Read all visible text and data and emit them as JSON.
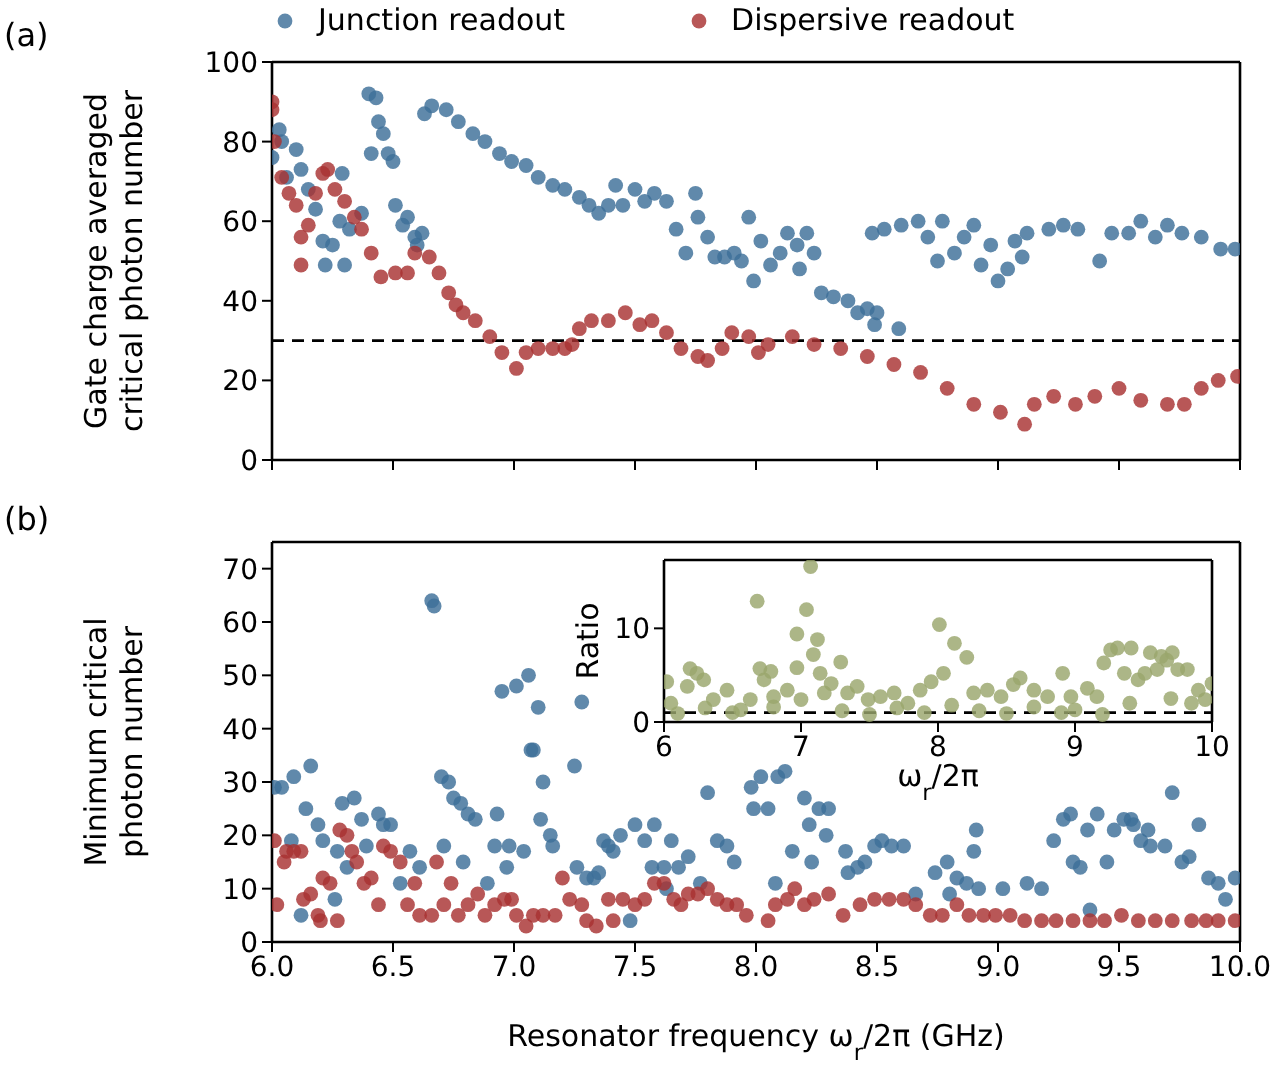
{
  "chart_data": [
    {
      "type": "scatter",
      "ylabel": "Gate charge averaged critical photon number",
      "annotations": [
        "(a)"
      ],
      "legend": "top",
      "marker": "circle",
      "tick_labels": "y",
      "xlim": [
        6,
        10
      ],
      "xticks": [
        {
          "value": 6,
          "label": null
        },
        {
          "value": 6.5,
          "label": null
        },
        {
          "value": 7,
          "label": null
        },
        {
          "value": 7.5,
          "label": null
        },
        {
          "value": 8,
          "label": null
        },
        {
          "value": 8.5,
          "label": null
        },
        {
          "value": 9,
          "label": null
        },
        {
          "value": 9.5,
          "label": null
        },
        {
          "value": 10,
          "label": null
        }
      ],
      "ylim": [
        0,
        100
      ],
      "yticks": [
        0,
        20,
        40,
        60,
        80,
        100
      ],
      "ref_lines": [
        {
          "axis": "y",
          "value": 30,
          "line_style": "dashed",
          "color": "#000000"
        }
      ],
      "series": [
        {
          "name": "Junction readout",
          "color": "#3d6f98",
          "x": [
            6.0,
            6.03,
            6.04,
            6.06,
            6.1,
            6.12,
            6.15,
            6.18,
            6.21,
            6.22,
            6.25,
            6.28,
            6.29,
            6.3,
            6.32,
            6.37,
            6.4,
            6.41,
            6.43,
            6.44,
            6.46,
            6.48,
            6.5,
            6.51,
            6.54,
            6.56,
            6.59,
            6.6,
            6.62,
            6.63,
            6.66,
            6.72,
            6.77,
            6.83,
            6.88,
            6.94,
            6.99,
            7.05,
            7.1,
            7.16,
            7.21,
            7.27,
            7.31,
            7.35,
            7.39,
            7.42,
            7.45,
            7.5,
            7.54,
            7.58,
            7.63,
            7.67,
            7.71,
            7.75,
            7.76,
            7.8,
            7.83,
            7.87,
            7.91,
            7.94,
            7.97,
            7.99,
            8.02,
            8.06,
            8.1,
            8.13,
            8.17,
            8.18,
            8.21,
            8.24,
            8.27,
            8.32,
            8.38,
            8.42,
            8.46,
            8.48,
            8.49,
            8.5,
            8.53,
            8.59,
            8.6,
            8.67,
            8.71,
            8.75,
            8.77,
            8.82,
            8.86,
            8.9,
            8.93,
            8.97,
            9.0,
            9.04,
            9.07,
            9.1,
            9.12,
            9.21,
            9.27,
            9.33,
            9.42,
            9.47,
            9.54,
            9.59,
            9.65,
            9.7,
            9.76,
            9.84,
            9.92,
            9.98
          ],
          "values": [
            76,
            83,
            80,
            71,
            78,
            73,
            68,
            63,
            55,
            49,
            54,
            60,
            72,
            49,
            58,
            62,
            92,
            77,
            91,
            85,
            82,
            77,
            75,
            64,
            59,
            61,
            56,
            54,
            57,
            87,
            89,
            88,
            85,
            82,
            80,
            77,
            75,
            74,
            71,
            69,
            68,
            66,
            64,
            62,
            64,
            69,
            64,
            68,
            65,
            67,
            65,
            58,
            52,
            67,
            61,
            56,
            51,
            51,
            52,
            50,
            61,
            45,
            55,
            49,
            52,
            57,
            54,
            48,
            57,
            52,
            42,
            41,
            40,
            37,
            38,
            57,
            34,
            37,
            58,
            33,
            59,
            60,
            56,
            50,
            60,
            52,
            56,
            59,
            49,
            54,
            45,
            48,
            55,
            51,
            57,
            58,
            59,
            58,
            50,
            57,
            57,
            60,
            56,
            59,
            57,
            56,
            53,
            53
          ]
        },
        {
          "name": "Dispersive readout",
          "color": "#a83232",
          "x": [
            6.0,
            6.0,
            6.01,
            6.04,
            6.07,
            6.1,
            6.12,
            6.12,
            6.15,
            6.18,
            6.21,
            6.23,
            6.26,
            6.3,
            6.34,
            6.37,
            6.41,
            6.45,
            6.51,
            6.56,
            6.59,
            6.65,
            6.69,
            6.73,
            6.76,
            6.79,
            6.84,
            6.9,
            6.95,
            7.01,
            7.05,
            7.1,
            7.16,
            7.21,
            7.24,
            7.27,
            7.32,
            7.39,
            7.46,
            7.52,
            7.57,
            7.63,
            7.69,
            7.76,
            7.8,
            7.86,
            7.9,
            7.97,
            8.01,
            8.05,
            8.15,
            8.24,
            8.35,
            8.46,
            8.57,
            8.68,
            8.79,
            8.9,
            9.01,
            9.11,
            9.15,
            9.23,
            9.32,
            9.4,
            9.5,
            9.59,
            9.7,
            9.77,
            9.84,
            9.91,
            9.99
          ],
          "values": [
            90,
            88,
            80,
            71,
            67,
            64,
            56,
            49,
            59,
            67,
            72,
            73,
            68,
            65,
            61,
            58,
            52,
            46,
            47,
            47,
            52,
            51,
            47,
            42,
            39,
            37,
            35,
            31,
            27,
            23,
            27,
            28,
            28,
            28,
            29,
            33,
            35,
            35,
            37,
            34,
            35,
            32,
            28,
            26,
            25,
            28,
            32,
            31,
            27,
            29,
            31,
            29,
            28,
            26,
            24,
            22,
            18,
            14,
            12,
            9,
            14,
            16,
            14,
            16,
            18,
            15,
            14,
            14,
            18,
            20,
            21
          ]
        }
      ]
    },
    {
      "type": "scatter",
      "xlabel": "Resonator frequency ω$_{r}$/2π (GHz)",
      "ylabel": "Minimum critical photon number",
      "annotations": [
        "(b)"
      ],
      "marker": "circle",
      "xlim": [
        6,
        10
      ],
      "xticks": [
        {
          "value": 6,
          "label": "6.0"
        },
        {
          "value": 6.5,
          "label": "6.5"
        },
        {
          "value": 7,
          "label": "7.0"
        },
        {
          "value": 7.5,
          "label": "7.5"
        },
        {
          "value": 8,
          "label": "8.0"
        },
        {
          "value": 8.5,
          "label": "8.5"
        },
        {
          "value": 9,
          "label": "9.0"
        },
        {
          "value": 9.5,
          "label": "9.5"
        },
        {
          "value": 10,
          "label": "10.0"
        }
      ],
      "ylim": [
        0,
        75
      ],
      "yticks": [
        0,
        10,
        20,
        30,
        40,
        50,
        60,
        70
      ],
      "series": [
        {
          "color": "#3d6f98",
          "x": [
            6.01,
            6.04,
            6.08,
            6.09,
            6.12,
            6.14,
            6.16,
            6.19,
            6.21,
            6.26,
            6.27,
            6.29,
            6.31,
            6.34,
            6.37,
            6.39,
            6.44,
            6.46,
            6.49,
            6.53,
            6.57,
            6.61,
            6.66,
            6.67,
            6.7,
            6.71,
            6.73,
            6.75,
            6.78,
            6.79,
            6.81,
            6.84,
            6.89,
            6.92,
            6.93,
            6.95,
            6.97,
            6.98,
            7.01,
            7.04,
            7.06,
            7.07,
            7.08,
            7.1,
            7.11,
            7.12,
            7.15,
            7.16,
            7.25,
            7.26,
            7.28,
            7.3,
            7.33,
            7.35,
            7.37,
            7.39,
            7.41,
            7.44,
            7.48,
            7.5,
            7.54,
            7.57,
            7.58,
            7.62,
            7.63,
            7.65,
            7.68,
            7.72,
            7.77,
            7.8,
            7.84,
            7.88,
            7.91,
            7.98,
            7.99,
            8.02,
            8.05,
            8.08,
            8.09,
            8.12,
            8.15,
            8.2,
            8.22,
            8.23,
            8.26,
            8.29,
            8.3,
            8.37,
            8.38,
            8.42,
            8.45,
            8.49,
            8.52,
            8.56,
            8.61,
            8.66,
            8.74,
            8.79,
            8.8,
            8.83,
            8.87,
            8.9,
            8.91,
            8.92,
            9.02,
            9.12,
            9.18,
            9.23,
            9.27,
            9.3,
            9.31,
            9.34,
            9.37,
            9.38,
            9.41,
            9.45,
            9.48,
            9.52,
            9.55,
            9.56,
            9.59,
            9.62,
            9.63,
            9.69,
            9.72,
            9.76,
            9.79,
            9.83,
            9.87,
            9.91,
            9.94,
            9.98
          ],
          "values": [
            29,
            29,
            19,
            31,
            5,
            25,
            33,
            22,
            19,
            8,
            17,
            26,
            14,
            27,
            23,
            18,
            24,
            22,
            22,
            11,
            17,
            14,
            64,
            63,
            31,
            18,
            30,
            27,
            26,
            15,
            24,
            23,
            11,
            18,
            24,
            47,
            14,
            18,
            48,
            17,
            50,
            36,
            36,
            44,
            23,
            30,
            20,
            18,
            33,
            14,
            45,
            12,
            12,
            13,
            19,
            18,
            17,
            20,
            4,
            22,
            19,
            14,
            22,
            14,
            10,
            19,
            14,
            16,
            11,
            28,
            19,
            18,
            15,
            29,
            25,
            31,
            25,
            11,
            31,
            32,
            17,
            27,
            22,
            15,
            25,
            20,
            25,
            17,
            13,
            14,
            15,
            18,
            19,
            18,
            18,
            9,
            13,
            15,
            9,
            12,
            11,
            17,
            21,
            10,
            10,
            11,
            10,
            19,
            23,
            24,
            15,
            14,
            21,
            6,
            24,
            15,
            21,
            23,
            23,
            22,
            19,
            21,
            18,
            18,
            28,
            15,
            16,
            22,
            12,
            11,
            8,
            12
          ]
        },
        {
          "color": "#a83232",
          "x": [
            6.01,
            6.02,
            6.05,
            6.06,
            6.09,
            6.12,
            6.13,
            6.16,
            6.19,
            6.2,
            6.21,
            6.24,
            6.27,
            6.28,
            6.31,
            6.33,
            6.35,
            6.38,
            6.41,
            6.44,
            6.46,
            6.49,
            6.53,
            6.56,
            6.59,
            6.61,
            6.66,
            6.68,
            6.71,
            6.74,
            6.77,
            6.81,
            6.85,
            6.88,
            6.92,
            6.96,
            6.99,
            7.01,
            7.05,
            7.08,
            7.12,
            7.17,
            7.2,
            7.23,
            7.28,
            7.3,
            7.34,
            7.39,
            7.41,
            7.45,
            7.5,
            7.54,
            7.58,
            7.62,
            7.66,
            7.69,
            7.72,
            7.76,
            7.8,
            7.84,
            7.88,
            7.92,
            7.96,
            8.05,
            8.08,
            8.13,
            8.16,
            8.2,
            8.24,
            8.3,
            8.36,
            8.43,
            8.49,
            8.55,
            8.61,
            8.66,
            8.72,
            8.77,
            8.83,
            8.88,
            8.94,
            8.99,
            9.05,
            9.11,
            9.18,
            9.24,
            9.31,
            9.38,
            9.44,
            9.51,
            9.58,
            9.65,
            9.72,
            9.8,
            9.86,
            9.91,
            9.98
          ],
          "values": [
            19,
            7,
            15,
            17,
            17,
            17,
            8,
            9,
            5,
            4,
            12,
            11,
            4,
            21,
            20,
            17,
            15,
            11,
            12,
            7,
            18,
            17,
            15,
            7,
            11,
            5,
            5,
            15,
            7,
            11,
            5,
            7,
            9,
            5,
            7,
            8,
            8,
            5,
            3,
            5,
            5,
            5,
            12,
            8,
            7,
            4,
            3,
            8,
            4,
            8,
            7,
            8,
            11,
            11,
            8,
            7,
            9,
            9,
            10,
            8,
            7,
            7,
            5,
            4,
            7,
            8,
            10,
            7,
            8,
            9,
            5,
            7,
            8,
            8,
            8,
            7,
            5,
            5,
            7,
            5,
            5,
            5,
            5,
            4,
            4,
            4,
            4,
            4,
            4,
            5,
            4,
            4,
            4,
            4,
            4,
            4,
            4
          ]
        }
      ]
    },
    {
      "type": "scatter",
      "xlabel": "ω$_{r}$/2π",
      "ylabel": "Ratio",
      "marker": "circle",
      "xlim": [
        6,
        10
      ],
      "xticks": [
        6,
        7,
        8,
        9,
        10
      ],
      "ylim": [
        0,
        17.3
      ],
      "yticks": [
        0,
        10
      ],
      "ref_lines": [
        {
          "axis": "y",
          "value": 1,
          "line_style": "dashed",
          "color": "#000000"
        }
      ],
      "series": [
        {
          "color": "#9aa66c",
          "x": [
            6.02,
            6.05,
            6.1,
            6.17,
            6.19,
            6.24,
            6.29,
            6.3,
            6.36,
            6.46,
            6.5,
            6.56,
            6.63,
            6.68,
            6.7,
            6.73,
            6.78,
            6.8,
            6.8,
            6.9,
            6.97,
            6.97,
            7.0,
            7.04,
            7.07,
            7.09,
            7.12,
            7.14,
            7.17,
            7.22,
            7.29,
            7.3,
            7.34,
            7.41,
            7.49,
            7.5,
            7.58,
            7.68,
            7.7,
            7.78,
            7.87,
            7.9,
            7.95,
            8.01,
            8.04,
            8.1,
            8.12,
            8.21,
            8.26,
            8.3,
            8.36,
            8.46,
            8.5,
            8.55,
            8.6,
            8.7,
            8.7,
            8.8,
            8.9,
            8.91,
            8.97,
            9.0,
            9.09,
            9.16,
            9.2,
            9.21,
            9.26,
            9.31,
            9.36,
            9.4,
            9.41,
            9.46,
            9.51,
            9.55,
            9.6,
            9.63,
            9.67,
            9.7,
            9.71,
            9.75,
            9.82,
            9.85,
            9.9,
            9.95,
            10.0
          ],
          "values": [
            4.3,
            2,
            0.9,
            3.8,
            5.7,
            5.2,
            4.5,
            1.5,
            2.4,
            3.4,
            1,
            1.3,
            2.4,
            12.9,
            5.7,
            4.5,
            5.4,
            2.7,
            1.6,
            3.4,
            9.4,
            5.8,
            2.4,
            12,
            16.6,
            7.2,
            8.8,
            5.2,
            3.1,
            4.1,
            6.4,
            1.2,
            3.1,
            3.8,
            2.4,
            0.8,
            2.7,
            3.1,
            1.5,
            2,
            3.4,
            1,
            4.3,
            10.4,
            5.2,
            1.8,
            8.4,
            6.9,
            3.1,
            1.2,
            3.4,
            2.7,
            0.9,
            4,
            4.7,
            3.4,
            1.6,
            2.7,
            1,
            5.2,
            2.7,
            1.3,
            3.6,
            2.7,
            0.8,
            6.3,
            7.7,
            7.9,
            5.2,
            2,
            7.9,
            4.5,
            5.2,
            7.4,
            5.6,
            7,
            6.6,
            2.5,
            7.4,
            5.6,
            5.6,
            2,
            3.4,
            2.4,
            4.1
          ]
        }
      ]
    }
  ]
}
